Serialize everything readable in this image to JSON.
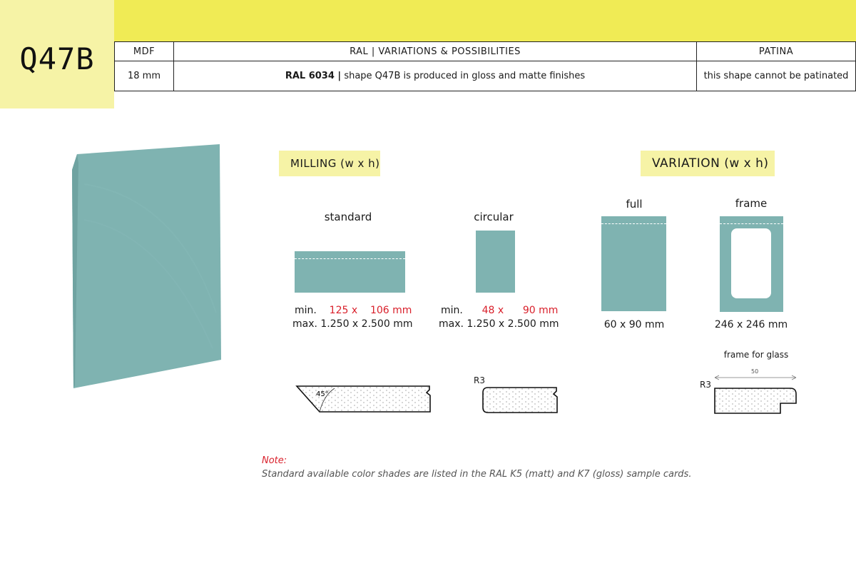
{
  "header": {
    "code": "Q47B",
    "columns": {
      "material": "MDF",
      "ral": "RAL | VARIATIONS & POSSIBILITIES",
      "patina": "PATINA"
    },
    "row": {
      "thickness": "18 mm",
      "ral_code": "RAL 6034 |",
      "ral_desc": "shape Q47B is produced in gloss and matte finishes",
      "patina": "this shape cannot be patinated"
    }
  },
  "milling": {
    "title": "MILLING",
    "subtitle": "(w x h)",
    "standard": {
      "heading": "standard",
      "min_label": "min.",
      "min_w": "125 x",
      "min_h": "106 mm",
      "max": "max. 1.250 x 2.500 mm",
      "profile_angle": "45°"
    },
    "circular": {
      "heading": "circular",
      "min_label": "min.",
      "min_w": "48 x",
      "min_h": "90 mm",
      "max": "max. 1.250 x 2.500 mm",
      "profile_radius": "R3"
    }
  },
  "variation": {
    "title": "VARIATION",
    "subtitle": "(w x h)",
    "full": {
      "heading": "full",
      "size": "60 x 90 mm"
    },
    "frame": {
      "heading": "frame",
      "size": "246 x 246 mm"
    },
    "frame_for_glass": {
      "heading": "frame for glass",
      "dimension": "50",
      "radius": "R3"
    }
  },
  "note": {
    "title": "Note:",
    "text": "Standard available color shades are listed in the RAL K5 (matt) and K7 (gloss) sample cards."
  },
  "colors": {
    "accent_yellow": "#f0eb55",
    "light_yellow": "#f6f3a6",
    "panel_teal": "#7fb3b1",
    "highlight_red": "#d9202b"
  }
}
